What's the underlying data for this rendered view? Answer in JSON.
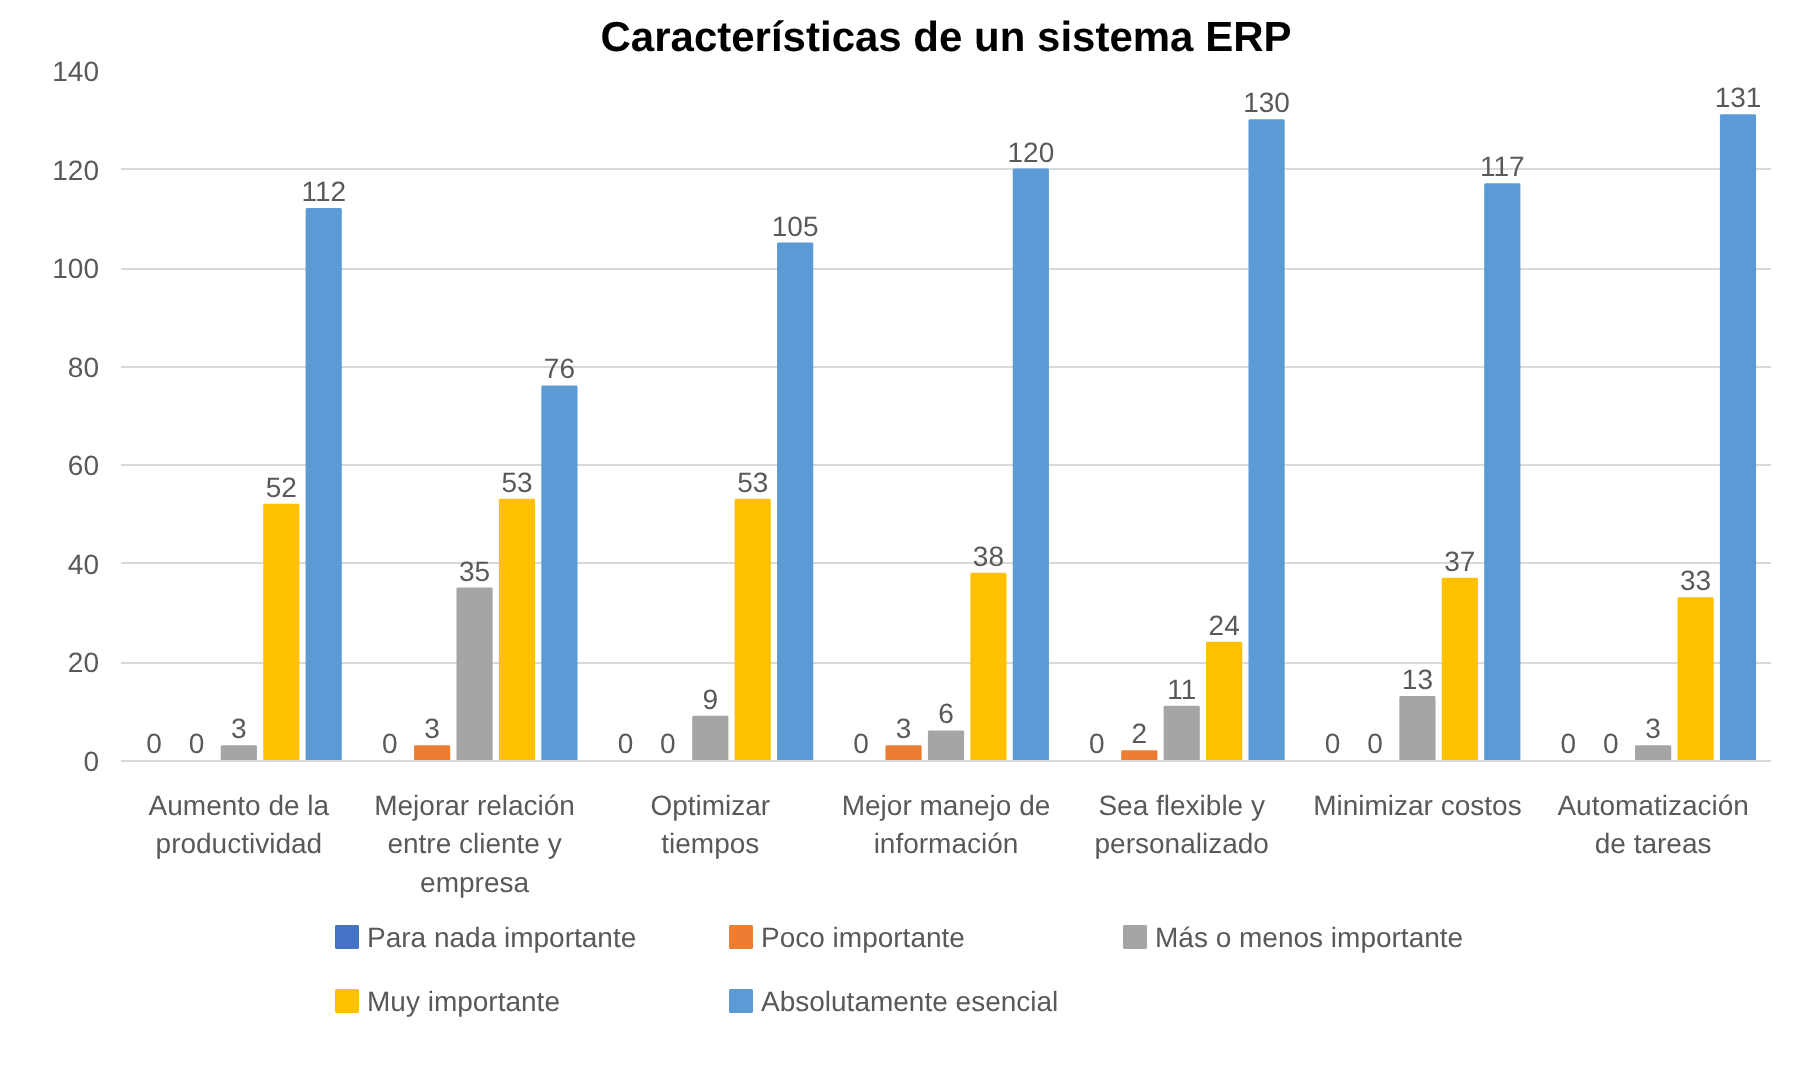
{
  "chart_data": {
    "type": "bar",
    "title": "Características de un sistema ERP",
    "categories": [
      "Aumento de la productividad",
      "Mejorar relación entre cliente y empresa",
      "Optimizar tiempos",
      "Mejor manejo de información",
      "Sea flexible y personalizado",
      "Minimizar costos",
      "Automatización de tareas"
    ],
    "series": [
      {
        "name": "Para nada importante",
        "color": "#4472c4",
        "values": [
          0,
          0,
          0,
          0,
          0,
          0,
          0
        ]
      },
      {
        "name": "Poco importante",
        "color": "#ed7d31",
        "values": [
          0,
          3,
          0,
          3,
          2,
          0,
          0
        ]
      },
      {
        "name": "Más o menos importante",
        "color": "#a5a5a5",
        "values": [
          3,
          35,
          9,
          6,
          11,
          13,
          3
        ]
      },
      {
        "name": "Muy importante",
        "color": "#ffc000",
        "values": [
          52,
          53,
          53,
          38,
          24,
          37,
          33
        ]
      },
      {
        "name": "Absolutamente esencial",
        "color": "#5b9bd5",
        "values": [
          112,
          76,
          105,
          120,
          130,
          117,
          131
        ]
      }
    ],
    "ylim": [
      0,
      140
    ],
    "yticks": [
      0,
      20,
      40,
      60,
      80,
      100,
      120,
      140
    ],
    "grid": "y",
    "legend": "bottom",
    "data_labels": true
  }
}
